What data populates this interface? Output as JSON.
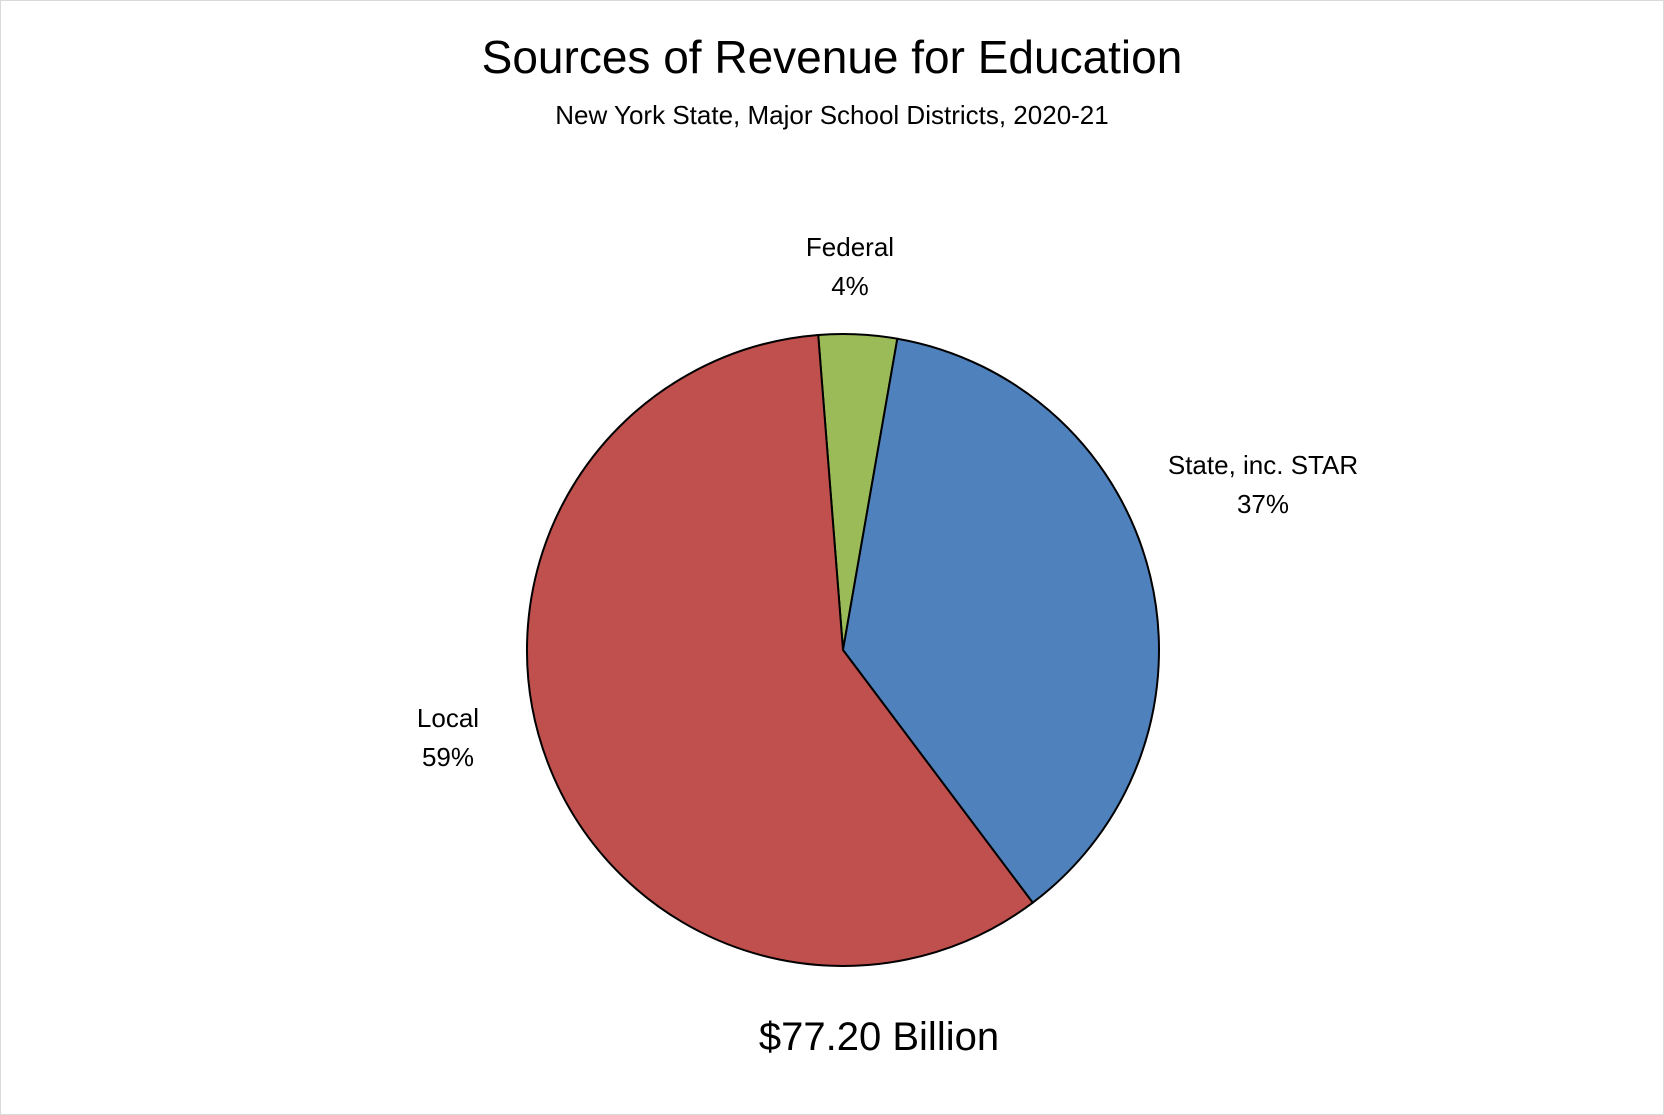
{
  "chart_data": {
    "type": "pie",
    "title": "Sources of Revenue for Education",
    "subtitle": "New York State, Major School Districts, 2020-21",
    "total_label": "$77.20 Billion",
    "slices": [
      {
        "name": "Federal",
        "label": "4%",
        "value": 4,
        "color": "#9BBB59"
      },
      {
        "name": "State, inc. STAR",
        "label": "37%",
        "value": 37,
        "color": "#4F81BD"
      },
      {
        "name": "Local",
        "label": "59%",
        "value": 59,
        "color": "#C0504D"
      }
    ],
    "start": "just left of 12 o'clock",
    "direction": "clockwise",
    "legend": "none"
  }
}
